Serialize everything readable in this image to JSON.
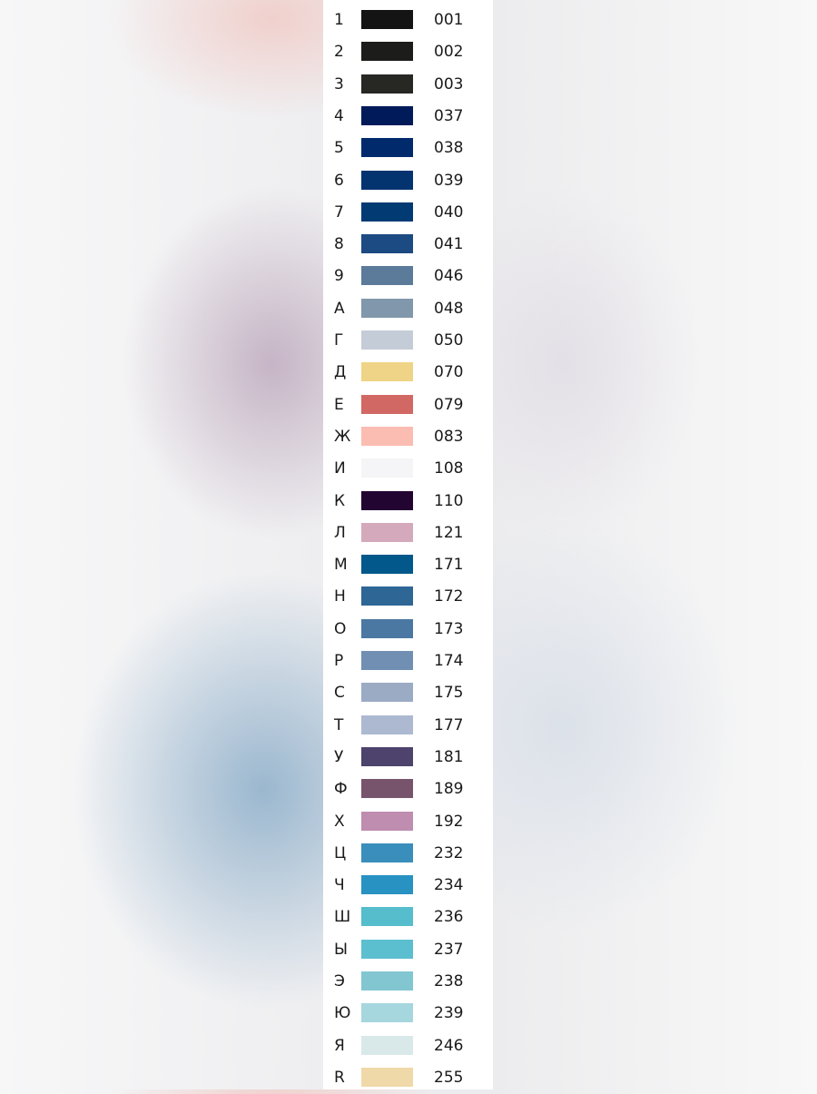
{
  "palette": [
    {
      "symbol": "1",
      "code": "001",
      "color": "#141414"
    },
    {
      "symbol": "2",
      "code": "002",
      "color": "#1c1c1a"
    },
    {
      "symbol": "3",
      "code": "003",
      "color": "#272723"
    },
    {
      "symbol": "4",
      "code": "037",
      "color": "#011a5a"
    },
    {
      "symbol": "5",
      "code": "038",
      "color": "#012a6d"
    },
    {
      "symbol": "6",
      "code": "039",
      "color": "#033470"
    },
    {
      "symbol": "7",
      "code": "040",
      "color": "#023a74"
    },
    {
      "symbol": "8",
      "code": "041",
      "color": "#1c4a82"
    },
    {
      "symbol": "9",
      "code": "046",
      "color": "#5c7b9b"
    },
    {
      "symbol": "А",
      "code": "048",
      "color": "#8197ab"
    },
    {
      "symbol": "Г",
      "code": "050",
      "color": "#c4ccd7"
    },
    {
      "symbol": "Д",
      "code": "070",
      "color": "#efd487"
    },
    {
      "symbol": "Е",
      "code": "079",
      "color": "#d26864"
    },
    {
      "symbol": "Ж",
      "code": "083",
      "color": "#fbbdb2"
    },
    {
      "symbol": "И",
      "code": "108",
      "color": "#f5f5f7"
    },
    {
      "symbol": "К",
      "code": "110",
      "color": "#230532"
    },
    {
      "symbol": "Л",
      "code": "121",
      "color": "#d4a9bb"
    },
    {
      "symbol": "М",
      "code": "171",
      "color": "#02588a"
    },
    {
      "symbol": "Н",
      "code": "172",
      "color": "#2e6696"
    },
    {
      "symbol": "О",
      "code": "173",
      "color": "#4b78a3"
    },
    {
      "symbol": "Р",
      "code": "174",
      "color": "#718fb2"
    },
    {
      "symbol": "С",
      "code": "175",
      "color": "#9cabc4"
    },
    {
      "symbol": "Т",
      "code": "177",
      "color": "#acb9d1"
    },
    {
      "symbol": "У",
      "code": "181",
      "color": "#4d436d"
    },
    {
      "symbol": "Ф",
      "code": "189",
      "color": "#77546c"
    },
    {
      "symbol": "Х",
      "code": "192",
      "color": "#be8db0"
    },
    {
      "symbol": "Ц",
      "code": "232",
      "color": "#3a8ebb"
    },
    {
      "symbol": "Ч",
      "code": "234",
      "color": "#2892c2"
    },
    {
      "symbol": "Ш",
      "code": "236",
      "color": "#55bdcc"
    },
    {
      "symbol": "Ы",
      "code": "237",
      "color": "#5cbfcf"
    },
    {
      "symbol": "Э",
      "code": "238",
      "color": "#82c6d1"
    },
    {
      "symbol": "Ю",
      "code": "239",
      "color": "#a6d6de"
    },
    {
      "symbol": "Я",
      "code": "246",
      "color": "#d9e8e8"
    },
    {
      "symbol": "R",
      "code": "255",
      "color": "#f0d9a8"
    }
  ]
}
